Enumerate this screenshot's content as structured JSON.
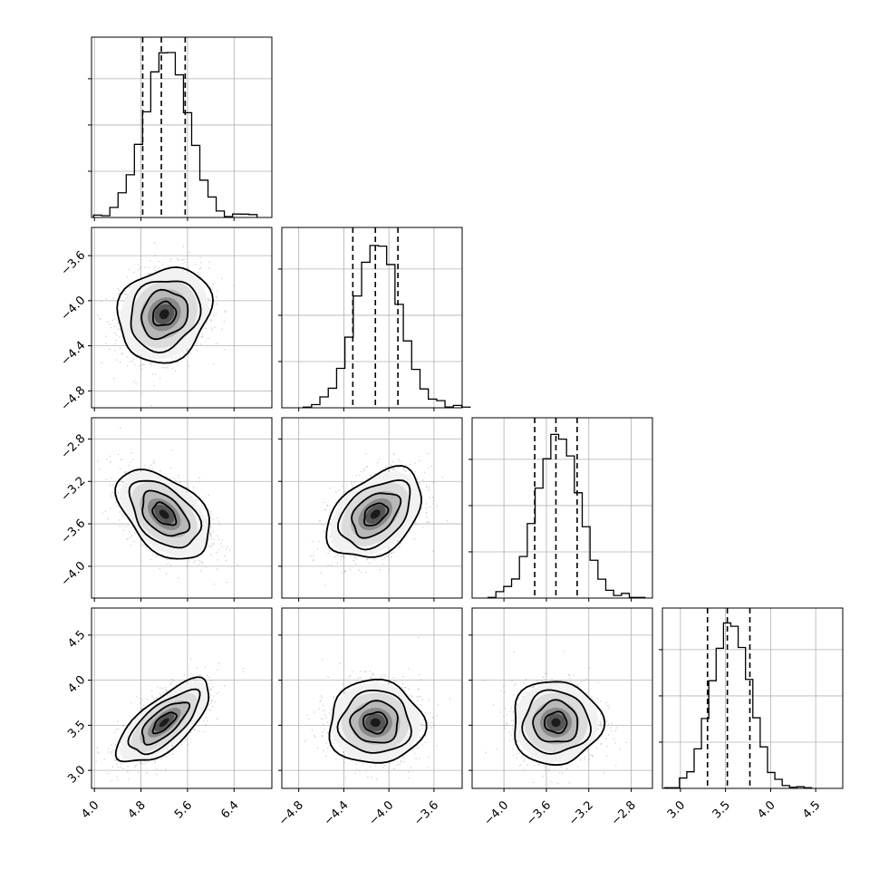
{
  "chart_data": {
    "type": "corner",
    "parameters": [
      {
        "index": 0,
        "range": [
          3.95,
          7.05
        ],
        "ticks": [
          4.0,
          4.8,
          5.6,
          6.4
        ],
        "tick_labels": [
          "4.0",
          "4.8",
          "5.6",
          "6.4"
        ],
        "mean": 5.2,
        "sd": 0.38,
        "quantiles": [
          4.83,
          5.15,
          5.56
        ]
      },
      {
        "index": 1,
        "range": [
          -4.95,
          -3.35
        ],
        "ticks": [
          -4.8,
          -4.4,
          -4.0,
          -3.6
        ],
        "tick_labels": [
          "−4.8",
          "−4.4",
          "−4.0",
          "−3.6"
        ],
        "mean": -4.12,
        "sd": 0.2,
        "quantiles": [
          -4.32,
          -4.12,
          -3.92
        ]
      },
      {
        "index": 2,
        "range": [
          -4.3,
          -2.6
        ],
        "ticks": [
          -4.0,
          -3.6,
          -3.2,
          -2.8
        ],
        "tick_labels": [
          "−4.0",
          "−3.6",
          "−3.2",
          "−2.8"
        ],
        "mean": -3.51,
        "sd": 0.2,
        "quantiles": [
          -3.71,
          -3.51,
          -3.31
        ]
      },
      {
        "index": 3,
        "range": [
          2.8,
          4.8
        ],
        "ticks": [
          3.0,
          3.5,
          4.0,
          4.5
        ],
        "tick_labels": [
          "3.0",
          "3.5",
          "4.0",
          "4.5"
        ],
        "mean": 3.53,
        "sd": 0.22,
        "quantiles": [
          3.3,
          3.52,
          3.77
        ]
      }
    ],
    "correlations": [
      {
        "i": 1,
        "j": 0,
        "r": 0.15
      },
      {
        "i": 2,
        "j": 0,
        "r": -0.45
      },
      {
        "i": 2,
        "j": 1,
        "r": 0.4
      },
      {
        "i": 3,
        "j": 0,
        "r": 0.7
      },
      {
        "i": 3,
        "j": 1,
        "r": 0.0
      },
      {
        "i": 3,
        "j": 2,
        "r": 0.0
      }
    ],
    "contour_levels_sigma": [
      0.5,
      1.0,
      1.5,
      2.0
    ],
    "grid": true,
    "xlabel": "",
    "ylabel": "",
    "title": ""
  }
}
